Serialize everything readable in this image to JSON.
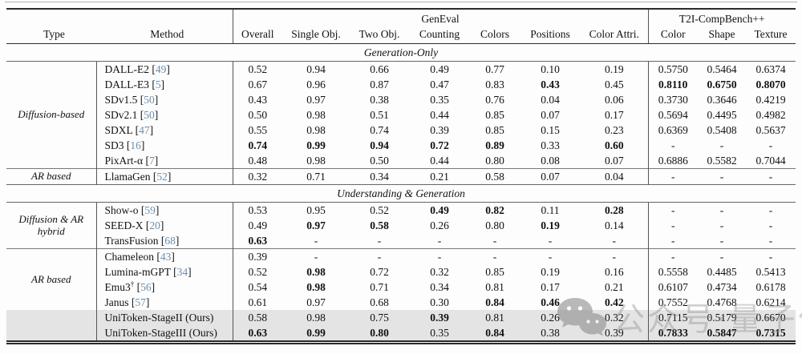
{
  "table": {
    "header": {
      "type": "Type",
      "method": "Method",
      "geneval_group": "GenEval",
      "t2i_group": "T2I-CompBench++",
      "columns": [
        "Overall",
        "Single Obj.",
        "Two Obj.",
        "Counting",
        "Colors",
        "Positions",
        "Color Attri.",
        "Color",
        "Shape",
        "Texture"
      ]
    },
    "sections": [
      {
        "title": "Generation-Only",
        "groups": [
          {
            "type_label": "Diffusion-based",
            "label_rows": 7,
            "rows": [
              {
                "method": "DALL-E2",
                "cite": "49",
                "values": [
                  "0.52",
                  "0.94",
                  "0.66",
                  "0.49",
                  "0.77",
                  "0.10",
                  "0.19",
                  "0.5750",
                  "0.5464",
                  "0.6374"
                ],
                "bold": []
              },
              {
                "method": "DALL-E3",
                "cite": "5",
                "values": [
                  "0.67",
                  "0.96",
                  "0.87",
                  "0.47",
                  "0.83",
                  "0.43",
                  "0.45",
                  "0.8110",
                  "0.6750",
                  "0.8070"
                ],
                "bold": [
                  5,
                  7,
                  8,
                  9
                ]
              },
              {
                "method": "SDv1.5",
                "cite": "50",
                "values": [
                  "0.43",
                  "0.97",
                  "0.38",
                  "0.35",
                  "0.76",
                  "0.04",
                  "0.06",
                  "0.3730",
                  "0.3646",
                  "0.4219"
                ],
                "bold": []
              },
              {
                "method": "SDv2.1",
                "cite": "50",
                "values": [
                  "0.50",
                  "0.98",
                  "0.51",
                  "0.44",
                  "0.85",
                  "0.07",
                  "0.17",
                  "0.5694",
                  "0.4495",
                  "0.4982"
                ],
                "bold": []
              },
              {
                "method": "SDXL",
                "cite": "47",
                "values": [
                  "0.55",
                  "0.98",
                  "0.74",
                  "0.39",
                  "0.85",
                  "0.15",
                  "0.23",
                  "0.6369",
                  "0.5408",
                  "0.5637"
                ],
                "bold": []
              },
              {
                "method": "SD3",
                "cite": "16",
                "values": [
                  "0.74",
                  "0.99",
                  "0.94",
                  "0.72",
                  "0.89",
                  "0.33",
                  "0.60",
                  "-",
                  "-",
                  "-"
                ],
                "bold": [
                  0,
                  1,
                  2,
                  3,
                  4,
                  6
                ]
              },
              {
                "method": "PixArt-α",
                "cite": "7",
                "values": [
                  "0.48",
                  "0.98",
                  "0.50",
                  "0.44",
                  "0.80",
                  "0.08",
                  "0.07",
                  "0.6886",
                  "0.5582",
                  "0.7044"
                ],
                "bold": []
              }
            ]
          },
          {
            "type_label": "AR based",
            "label_rows": 1,
            "rows": [
              {
                "method": "LlamaGen",
                "cite": "52",
                "values": [
                  "0.32",
                  "0.71",
                  "0.34",
                  "0.21",
                  "0.58",
                  "0.07",
                  "0.04",
                  "-",
                  "-",
                  "-"
                ],
                "bold": []
              }
            ]
          }
        ]
      },
      {
        "title": "Understanding & Generation",
        "groups": [
          {
            "type_label": "Diffusion & AR hybrid",
            "label_rows": 3,
            "rows": [
              {
                "method": "Show-o",
                "cite": "59",
                "values": [
                  "0.53",
                  "0.95",
                  "0.52",
                  "0.49",
                  "0.82",
                  "0.11",
                  "0.28",
                  "-",
                  "-",
                  "-"
                ],
                "bold": [
                  3,
                  4,
                  6
                ]
              },
              {
                "method": "SEED-X",
                "cite": "20",
                "values": [
                  "0.49",
                  "0.97",
                  "0.58",
                  "0.26",
                  "0.80",
                  "0.19",
                  "0.14",
                  "-",
                  "-",
                  "-"
                ],
                "bold": [
                  1,
                  2,
                  5
                ]
              },
              {
                "method": "TransFusion",
                "cite": "68",
                "values": [
                  "0.63",
                  "-",
                  "-",
                  "-",
                  "-",
                  "-",
                  "-",
                  "-",
                  "-",
                  "-"
                ],
                "bold": [
                  0
                ]
              }
            ]
          },
          {
            "type_label": "AR based",
            "label_rows": 4,
            "rows": [
              {
                "method": "Chameleon",
                "cite": "43",
                "values": [
                  "0.39",
                  "-",
                  "-",
                  "-",
                  "-",
                  "-",
                  "-",
                  "-",
                  "-",
                  "-"
                ],
                "bold": []
              },
              {
                "method": "Lumina-mGPT",
                "cite": "34",
                "values": [
                  "0.52",
                  "0.98",
                  "0.72",
                  "0.32",
                  "0.85",
                  "0.19",
                  "0.16",
                  "0.5558",
                  "0.4485",
                  "0.5413"
                ],
                "bold": [
                  1
                ]
              },
              {
                "method": "Emu3",
                "sup": "†",
                "cite": "56",
                "values": [
                  "0.54",
                  "0.98",
                  "0.71",
                  "0.34",
                  "0.81",
                  "0.17",
                  "0.21",
                  "0.6107",
                  "0.4734",
                  "0.6178"
                ],
                "bold": [
                  1
                ]
              },
              {
                "method": "Janus",
                "cite": "57",
                "values": [
                  "0.61",
                  "0.97",
                  "0.68",
                  "0.30",
                  "0.84",
                  "0.46",
                  "0.42",
                  "0.7552",
                  "0.4768",
                  "0.6214"
                ],
                "bold": [
                  4,
                  5,
                  6
                ]
              },
              {
                "method": "UniToken-StageII (Ours)",
                "cite": null,
                "highlight": true,
                "values": [
                  "0.58",
                  "0.98",
                  "0.75",
                  "0.39",
                  "0.81",
                  "0.26",
                  "0.32",
                  "0.7115",
                  "0.5179",
                  "0.6670"
                ],
                "bold": [
                  3
                ]
              },
              {
                "method": "UniToken-StageIII (Ours)",
                "cite": null,
                "highlight": true,
                "values": [
                  "0.63",
                  "0.99",
                  "0.80",
                  "0.35",
                  "0.84",
                  "0.38",
                  "0.39",
                  "0.7833",
                  "0.5847",
                  "0.7315"
                ],
                "bold": [
                  0,
                  1,
                  2,
                  4,
                  7,
                  8,
                  9
                ]
              }
            ]
          }
        ]
      }
    ]
  },
  "watermark": {
    "text": "公众号·量子位"
  },
  "colors": {
    "citation_link": "#6d8dab",
    "highlight_row": "#e4e4e4",
    "watermark_gray": "#8f8f8f",
    "rule_dark": "#2b2b2b",
    "rule_gray": "#777777"
  }
}
